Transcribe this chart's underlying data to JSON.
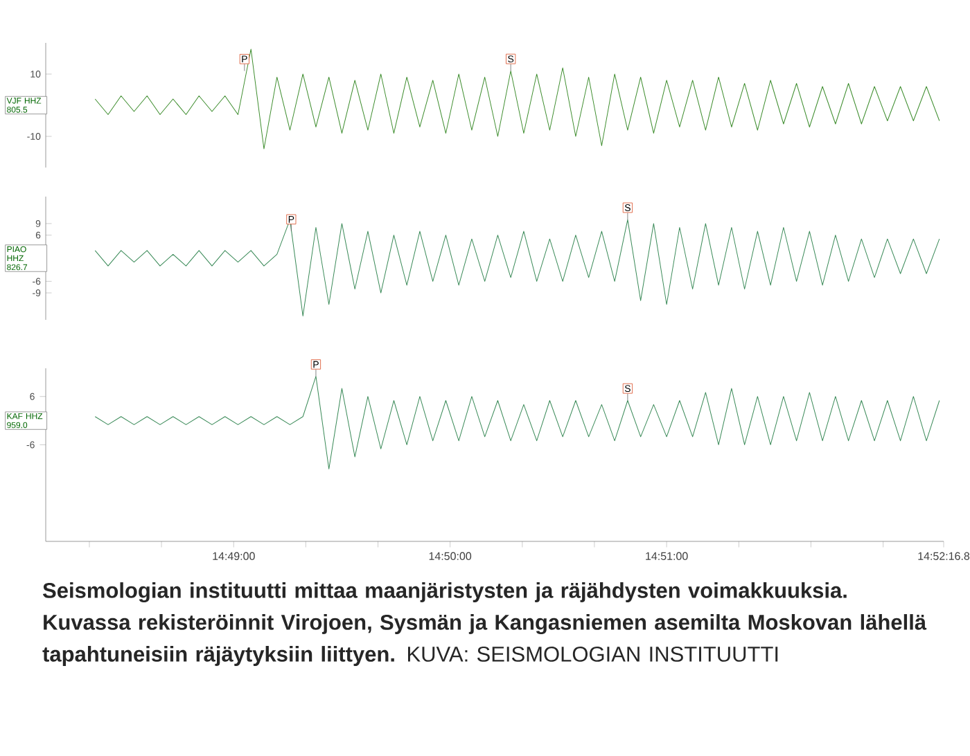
{
  "chart_data": [
    {
      "type": "line",
      "ylabel": "VJF HHZ 805.5",
      "x": [
        14.806,
        14.807,
        14.808,
        14.809,
        14.81,
        14.811,
        14.812,
        14.813,
        14.814,
        14.815,
        14.816,
        14.817,
        14.818,
        14.819,
        14.82,
        14.821,
        14.822,
        14.823,
        14.824,
        14.825,
        14.826,
        14.827,
        14.828,
        14.829,
        14.83,
        14.831,
        14.832,
        14.833,
        14.834,
        14.835,
        14.836,
        14.837,
        14.838,
        14.839,
        14.84,
        14.841,
        14.842,
        14.843,
        14.844,
        14.845,
        14.846,
        14.847,
        14.848,
        14.849,
        14.85,
        14.851,
        14.852,
        14.853,
        14.854,
        14.855,
        14.856,
        14.857,
        14.858,
        14.859,
        14.86,
        14.861,
        14.862,
        14.863,
        14.864,
        14.865,
        14.866,
        14.867,
        14.868,
        14.869,
        14.87,
        14.871
      ],
      "series": [
        {
          "color": "#3c8c2c",
          "values": [
            2,
            -3,
            3,
            -2,
            3,
            -3,
            2,
            -3,
            3,
            -2,
            3,
            -3,
            18,
            -14,
            9,
            -8,
            10,
            -7,
            9,
            -9,
            8,
            -8,
            10,
            -9,
            9,
            -7,
            8,
            -9,
            10,
            -8,
            9,
            -10,
            11,
            -9,
            10,
            -8,
            12,
            -10,
            9,
            -13,
            10,
            -8,
            9,
            -9,
            8,
            -7,
            8,
            -8,
            9,
            -7,
            7,
            -8,
            8,
            -6,
            7,
            -7,
            6,
            -6,
            7,
            -6,
            6,
            -5,
            6,
            -5,
            6,
            -5
          ]
        }
      ],
      "xlim": [
        14.8022,
        14.87133
      ],
      "ylim": [
        -20,
        20
      ],
      "yticks": [
        10,
        -10
      ],
      "tick_labels": "y",
      "annotations": [
        {
          "text": "P",
          "x": 14.8175,
          "y": 11
        },
        {
          "text": "S",
          "x": 14.838,
          "y": 11
        }
      ]
    },
    {
      "type": "line",
      "ylabel": "PIAO HHZ 826.7",
      "x": [
        14.806,
        14.807,
        14.808,
        14.809,
        14.81,
        14.811,
        14.812,
        14.813,
        14.814,
        14.815,
        14.816,
        14.817,
        14.818,
        14.819,
        14.82,
        14.821,
        14.822,
        14.823,
        14.824,
        14.825,
        14.826,
        14.827,
        14.828,
        14.829,
        14.83,
        14.831,
        14.832,
        14.833,
        14.834,
        14.835,
        14.836,
        14.837,
        14.838,
        14.839,
        14.84,
        14.841,
        14.842,
        14.843,
        14.844,
        14.845,
        14.846,
        14.847,
        14.848,
        14.849,
        14.85,
        14.851,
        14.852,
        14.853,
        14.854,
        14.855,
        14.856,
        14.857,
        14.858,
        14.859,
        14.86,
        14.861,
        14.862,
        14.863,
        14.864,
        14.865,
        14.866,
        14.867,
        14.868,
        14.869,
        14.87,
        14.871
      ],
      "series": [
        {
          "color": "#3a8a58",
          "values": [
            2,
            -2,
            2,
            -1,
            2,
            -2,
            1,
            -2,
            2,
            -2,
            2,
            -1,
            2,
            -2,
            1,
            10,
            -15,
            8,
            -12,
            9,
            -8,
            7,
            -9,
            6,
            -7,
            7,
            -6,
            6,
            -7,
            5,
            -6,
            6,
            -5,
            7,
            -6,
            5,
            -6,
            6,
            -5,
            7,
            -6,
            10,
            -11,
            9,
            -12,
            8,
            -8,
            9,
            -7,
            8,
            -8,
            7,
            -7,
            8,
            -6,
            7,
            -7,
            6,
            -6,
            5,
            -5,
            5,
            -4,
            5,
            -4,
            5
          ]
        }
      ],
      "xlim": [
        14.8022,
        14.87133
      ],
      "ylim": [
        -16,
        16
      ],
      "yticks": [
        9,
        6,
        -6,
        -9
      ],
      "tick_labels": "y",
      "annotations": [
        {
          "text": "P",
          "x": 14.8211,
          "y": 7
        },
        {
          "text": "S",
          "x": 14.847,
          "y": 10
        }
      ]
    },
    {
      "type": "line",
      "ylabel": "KAF HHZ 959.0",
      "x": [
        14.806,
        14.807,
        14.808,
        14.809,
        14.81,
        14.811,
        14.812,
        14.813,
        14.814,
        14.815,
        14.816,
        14.817,
        14.818,
        14.819,
        14.82,
        14.821,
        14.822,
        14.823,
        14.824,
        14.825,
        14.826,
        14.827,
        14.828,
        14.829,
        14.83,
        14.831,
        14.832,
        14.833,
        14.834,
        14.835,
        14.836,
        14.837,
        14.838,
        14.839,
        14.84,
        14.841,
        14.842,
        14.843,
        14.844,
        14.845,
        14.846,
        14.847,
        14.848,
        14.849,
        14.85,
        14.851,
        14.852,
        14.853,
        14.854,
        14.855,
        14.856,
        14.857,
        14.858,
        14.859,
        14.86,
        14.861,
        14.862,
        14.863,
        14.864,
        14.865,
        14.866,
        14.867,
        14.868,
        14.869,
        14.87,
        14.871
      ],
      "series": [
        {
          "color": "#3a8a58",
          "values": [
            1,
            -1,
            1,
            -1,
            1,
            -1,
            1,
            -1,
            1,
            -1,
            1,
            -1,
            1,
            -1,
            1,
            -1,
            1,
            11,
            -12,
            8,
            -9,
            6,
            -7,
            5,
            -6,
            6,
            -5,
            5,
            -5,
            6,
            -4,
            5,
            -5,
            4,
            -5,
            5,
            -4,
            5,
            -4,
            4,
            -5,
            5,
            -4,
            4,
            -4,
            5,
            -4,
            7,
            -6,
            8,
            -6,
            6,
            -6,
            6,
            -5,
            7,
            -5,
            6,
            -5,
            5,
            -5,
            5,
            -5,
            6,
            -5,
            5
          ]
        }
      ],
      "xlim": [
        14.8022,
        14.87133
      ],
      "ylim": [
        -30,
        13
      ],
      "yticks": [
        6,
        -6
      ],
      "xticks": [
        {
          "value": 14.80556,
          "label": null
        },
        {
          "value": 14.81111,
          "label": null
        },
        {
          "value": 14.81667,
          "label": "14:49:00"
        },
        {
          "value": 14.82222,
          "label": null
        },
        {
          "value": 14.82778,
          "label": null
        },
        {
          "value": 14.83333,
          "label": "14:50:00"
        },
        {
          "value": 14.83889,
          "label": null
        },
        {
          "value": 14.84444,
          "label": null
        },
        {
          "value": 14.85,
          "label": "14:51:00"
        },
        {
          "value": 14.85556,
          "label": null
        },
        {
          "value": 14.86111,
          "label": null
        },
        {
          "value": 14.86667,
          "label": null
        },
        {
          "value": 14.87133,
          "label": "14:52:16.8"
        }
      ],
      "annotations": [
        {
          "text": "P",
          "x": 14.823,
          "y": 11
        },
        {
          "text": "S",
          "x": 14.847,
          "y": 5
        },
        "**Seismologian instituutti mittaa maanjäristysten ja räjähdysten voimakkuuksia. Kuvassa rekisteröinnit Virojoen, Sysmän ja Kangasniemen asemilta Moskovan lähellä tapahtuneisiin räjäytyksiin liittyen.** KUVA: SEISMOLOGIAN INSTITUUTTI"
      ]
    }
  ]
}
